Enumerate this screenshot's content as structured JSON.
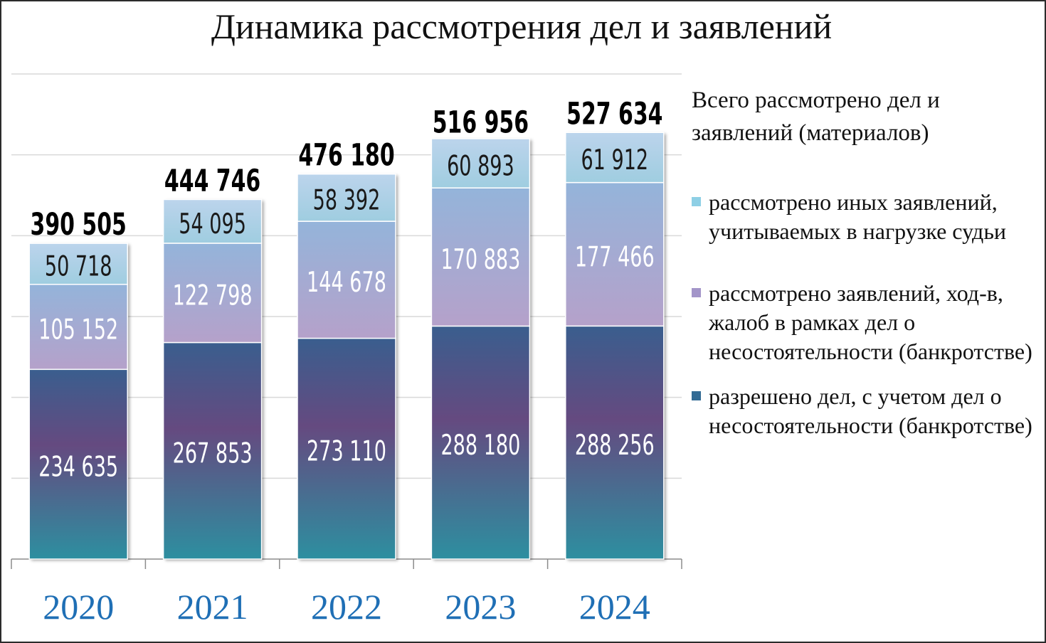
{
  "chart_data": {
    "type": "bar",
    "stacked": true,
    "title": "Динамика рассмотрения дел и заявлений",
    "categories": [
      "2020",
      "2021",
      "2022",
      "2023",
      "2024"
    ],
    "series": [
      {
        "name": "разрешено дел, с учетом дел о несостоятельности (банкротстве)",
        "values": [
          234635,
          267853,
          273110,
          288180,
          288256
        ]
      },
      {
        "name": "рассмотрено заявлений, ход-в, жалоб в рамках дел о несостоятельности (банкротстве)",
        "values": [
          105152,
          122798,
          144678,
          170883,
          177466
        ]
      },
      {
        "name": "рассмотрено иных заявлений, учитываемых в нагрузке судьи",
        "values": [
          50718,
          54095,
          58392,
          60893,
          61912
        ]
      }
    ],
    "segment_labels": [
      [
        "234 635",
        "105 152",
        "50 718"
      ],
      [
        "267 853",
        "122 798",
        "54 095"
      ],
      [
        "273 110",
        "144 678",
        "58 392"
      ],
      [
        "288 180",
        "170 883",
        "60 893"
      ],
      [
        "288 256",
        "177 466",
        "61 912"
      ]
    ],
    "totals": [
      390505,
      444746,
      476180,
      516956,
      527634
    ],
    "total_labels": [
      "390 505",
      "444 746",
      "476 180",
      "516 956",
      "527 634"
    ],
    "legend_title": "Всего рассмотрено дел и заявлений (материалов)",
    "legend_position": "right",
    "ylim": [
      0,
      600000
    ],
    "grid": true,
    "colors": {
      "series0_top": "#654a80",
      "series0_bottom": "#2d8fa0",
      "series1_top": "#94b4da",
      "series1_bottom": "#b5a1ca",
      "series2": "#b5d2e8",
      "legend0": "#336b94",
      "legend1": "#a395c9",
      "legend2": "#8ecfe5",
      "category_label": "#1f6fb5",
      "grid": "#d9d9d9"
    }
  }
}
